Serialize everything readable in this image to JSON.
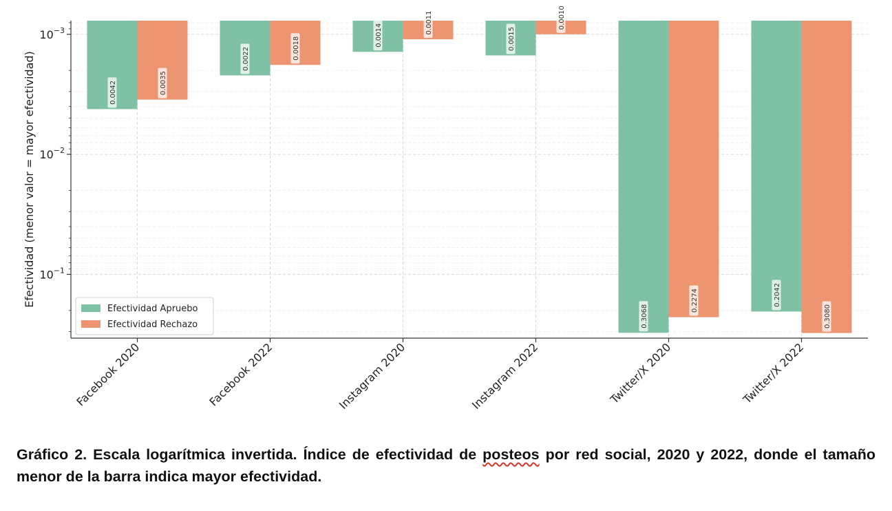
{
  "chart_data": {
    "type": "bar",
    "orientation": "vertical",
    "y_scale": "log",
    "y_inverted": true,
    "ylabel": "Efectividad (menor valor = mayor efectividad)",
    "xlabel": "",
    "ylim": [
      0.00077,
      0.34
    ],
    "y_ticks": [
      0.001,
      0.01,
      0.1
    ],
    "y_tick_labels": [
      {
        "base": "10",
        "exp": "−3"
      },
      {
        "base": "10",
        "exp": "−2"
      },
      {
        "base": "10",
        "exp": "−1"
      }
    ],
    "categories": [
      "Facebook 2020",
      "Facebook 2022",
      "Instagram 2020",
      "Instagram 2022",
      "Twitter/X 2020",
      "Twitter/X 2022"
    ],
    "series": [
      {
        "name": "Efectividad Apruebo",
        "color": "#7fc1a5",
        "values": [
          0.0042,
          0.0022,
          0.0014,
          0.0015,
          0.3068,
          0.2042
        ],
        "labels": [
          "0.0042",
          "0.0022",
          "0.0014",
          "0.0015",
          "0.3068",
          "0.2042"
        ]
      },
      {
        "name": "Efectividad Rechazo",
        "color": "#ec9570",
        "values": [
          0.0035,
          0.0018,
          0.0011,
          0.001,
          0.2274,
          0.308
        ],
        "labels": [
          "0.0035",
          "0.0018",
          "0.0011",
          "0.0010",
          "0.2274",
          "0.3080"
        ]
      }
    ],
    "legend_position": "lower-left",
    "grid": true,
    "data_labels": "rotated-vertical"
  },
  "caption": {
    "text_before": "Gráfico 2. Escala logarítmica invertida. Índice de efectividad de ",
    "underlined": "posteos",
    "text_after": " por red social, 2020 y 2022, donde el tamaño menor de la barra indica mayor efectividad."
  }
}
